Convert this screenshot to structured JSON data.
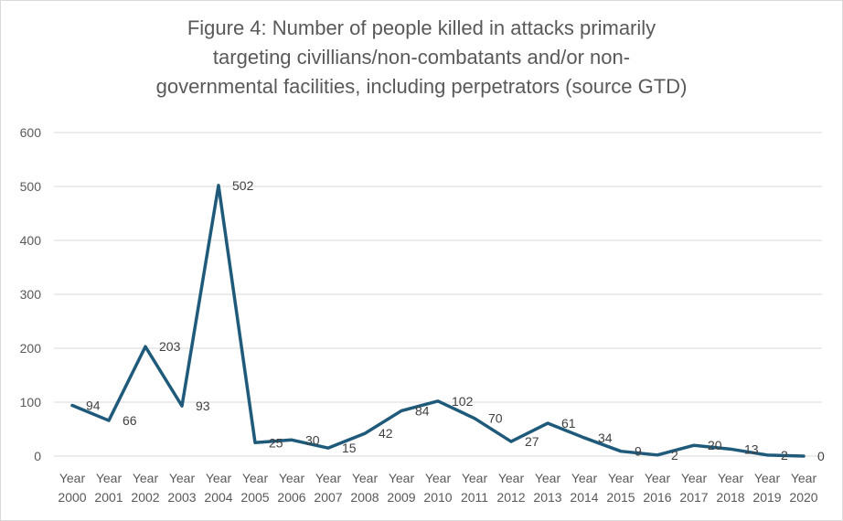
{
  "chart_data": {
    "type": "line",
    "title_lines": [
      "Figure 4: Number of people killed in attacks primarily",
      "targeting civillians/non-combatants and/or non-",
      "governmental facilities, including perpetrators (source GTD)"
    ],
    "categories": [
      "Year 2000",
      "Year 2001",
      "Year 2002",
      "Year 2003",
      "Year 2004",
      "Year 2005",
      "Year 2006",
      "Year 2007",
      "Year 2008",
      "Year 2009",
      "Year 2010",
      "Year 2011",
      "Year 2012",
      "Year 2013",
      "Year 2014",
      "Year 2015",
      "Year 2016",
      "Year 2017",
      "Year 2018",
      "Year 2019",
      "Year 2020"
    ],
    "category_lines": [
      [
        "Year",
        "2000"
      ],
      [
        "Year",
        "2001"
      ],
      [
        "Year",
        "2002"
      ],
      [
        "Year",
        "2003"
      ],
      [
        "Year",
        "2004"
      ],
      [
        "Year",
        "2005"
      ],
      [
        "Year",
        "2006"
      ],
      [
        "Year",
        "2007"
      ],
      [
        "Year",
        "2008"
      ],
      [
        "Year",
        "2009"
      ],
      [
        "Year",
        "2010"
      ],
      [
        "Year",
        "2011"
      ],
      [
        "Year",
        "2012"
      ],
      [
        "Year",
        "2013"
      ],
      [
        "Year",
        "2014"
      ],
      [
        "Year",
        "2015"
      ],
      [
        "Year",
        "2016"
      ],
      [
        "Year",
        "2017"
      ],
      [
        "Year",
        "2018"
      ],
      [
        "Year",
        "2019"
      ],
      [
        "Year",
        "2020"
      ]
    ],
    "series": [
      {
        "values": [
          94,
          66,
          203,
          93,
          502,
          25,
          30,
          15,
          42,
          84,
          102,
          70,
          27,
          61,
          34,
          9,
          2,
          20,
          13,
          2,
          0
        ]
      }
    ],
    "ylim": [
      0,
      600
    ],
    "yticks": [
      0,
      100,
      200,
      300,
      400,
      500,
      600
    ],
    "grid": true,
    "legend": "none",
    "data_labels": true,
    "line_color": "#1f5a7a",
    "grid_color": "#d9d9d9",
    "text_color": "#595959"
  }
}
